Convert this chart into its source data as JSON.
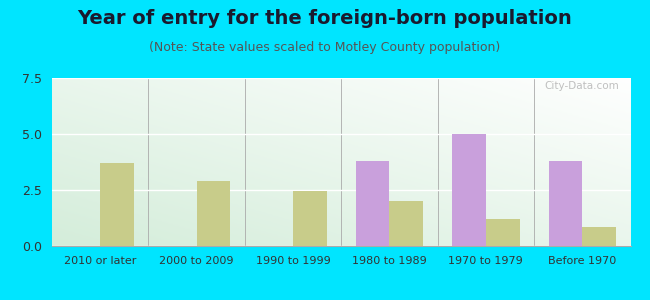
{
  "title": "Year of entry for the foreign-born population",
  "subtitle": "(Note: State values scaled to Motley County population)",
  "categories": [
    "2010 or later",
    "2000 to 2009",
    "1990 to 1999",
    "1980 to 1989",
    "1970 to 1979",
    "Before 1970"
  ],
  "motley_county": [
    0,
    0,
    0,
    3.8,
    5.0,
    3.8
  ],
  "texas": [
    3.7,
    2.9,
    2.45,
    2.0,
    1.2,
    0.85
  ],
  "motley_color": "#c9a0dc",
  "texas_color": "#c8cc8a",
  "background_outer": "#00e5ff",
  "ylim": [
    0,
    7.5
  ],
  "yticks": [
    0,
    2.5,
    5,
    7.5
  ],
  "bar_width": 0.35,
  "title_fontsize": 14,
  "subtitle_fontsize": 9
}
